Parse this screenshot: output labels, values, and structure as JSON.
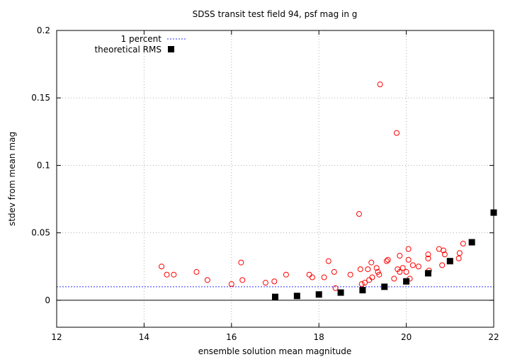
{
  "chart_data": {
    "type": "scatter",
    "title": "SDSS transit test field 94, psf mag in g",
    "xlabel": "ensemble solution mean magnitude",
    "ylabel": "stdev from mean mag",
    "xlim": [
      12,
      22
    ],
    "ylim": [
      -0.02,
      0.2
    ],
    "x_ticks": [
      12,
      14,
      16,
      18,
      20,
      22
    ],
    "y_ticks": [
      0,
      0.05,
      0.1,
      0.15,
      0.2
    ],
    "x_tick_labels": [
      "12",
      "14",
      "16",
      "18",
      "20",
      "22"
    ],
    "y_tick_labels": [
      "0",
      "0.05",
      "0.1",
      "0.15",
      "0.2"
    ],
    "grid": true,
    "legend_position": "top-left",
    "zero_line": 0,
    "series": [
      {
        "name": "",
        "marker": "open-circle",
        "color": "#ff0000",
        "points": [
          [
            14.4,
            0.025
          ],
          [
            14.52,
            0.019
          ],
          [
            14.68,
            0.019
          ],
          [
            15.2,
            0.021
          ],
          [
            15.45,
            0.015
          ],
          [
            16.0,
            0.012
          ],
          [
            16.22,
            0.028
          ],
          [
            16.25,
            0.015
          ],
          [
            16.78,
            0.013
          ],
          [
            16.98,
            0.014
          ],
          [
            17.25,
            0.019
          ],
          [
            17.78,
            0.019
          ],
          [
            17.85,
            0.017
          ],
          [
            18.12,
            0.017
          ],
          [
            18.22,
            0.029
          ],
          [
            18.35,
            0.021
          ],
          [
            18.38,
            0.009
          ],
          [
            18.72,
            0.019
          ],
          [
            18.92,
            0.064
          ],
          [
            18.95,
            0.023
          ],
          [
            18.98,
            0.012
          ],
          [
            19.05,
            0.013
          ],
          [
            19.12,
            0.023
          ],
          [
            19.15,
            0.015
          ],
          [
            19.2,
            0.028
          ],
          [
            19.22,
            0.017
          ],
          [
            19.32,
            0.024
          ],
          [
            19.35,
            0.021
          ],
          [
            19.38,
            0.019
          ],
          [
            19.4,
            0.16
          ],
          [
            19.55,
            0.029
          ],
          [
            19.58,
            0.03
          ],
          [
            19.72,
            0.016
          ],
          [
            19.78,
            0.124
          ],
          [
            19.8,
            0.023
          ],
          [
            19.85,
            0.021
          ],
          [
            19.85,
            0.033
          ],
          [
            19.92,
            0.024
          ],
          [
            20.0,
            0.021
          ],
          [
            20.05,
            0.038
          ],
          [
            20.05,
            0.03
          ],
          [
            20.08,
            0.016
          ],
          [
            20.15,
            0.026
          ],
          [
            20.28,
            0.025
          ],
          [
            20.5,
            0.034
          ],
          [
            20.5,
            0.031
          ],
          [
            20.52,
            0.022
          ],
          [
            20.75,
            0.038
          ],
          [
            20.82,
            0.026
          ],
          [
            20.85,
            0.037
          ],
          [
            20.88,
            0.034
          ],
          [
            21.2,
            0.031
          ],
          [
            21.22,
            0.035
          ],
          [
            21.3,
            0.042
          ]
        ]
      },
      {
        "name": "theoretical RMS",
        "marker": "filled-square",
        "color": "#000000",
        "points": [
          [
            17.0,
            0.0025
          ],
          [
            17.5,
            0.0032
          ],
          [
            18.0,
            0.0043
          ],
          [
            18.5,
            0.0057
          ],
          [
            19.0,
            0.0075
          ],
          [
            19.5,
            0.01
          ],
          [
            20.0,
            0.014
          ],
          [
            20.5,
            0.02
          ],
          [
            21.0,
            0.029
          ],
          [
            21.5,
            0.043
          ],
          [
            22.0,
            0.065
          ]
        ]
      },
      {
        "name": "1 percent",
        "type": "horizontal-line",
        "style": "dashed",
        "color": "#3333ff",
        "value": 0.01
      }
    ]
  }
}
